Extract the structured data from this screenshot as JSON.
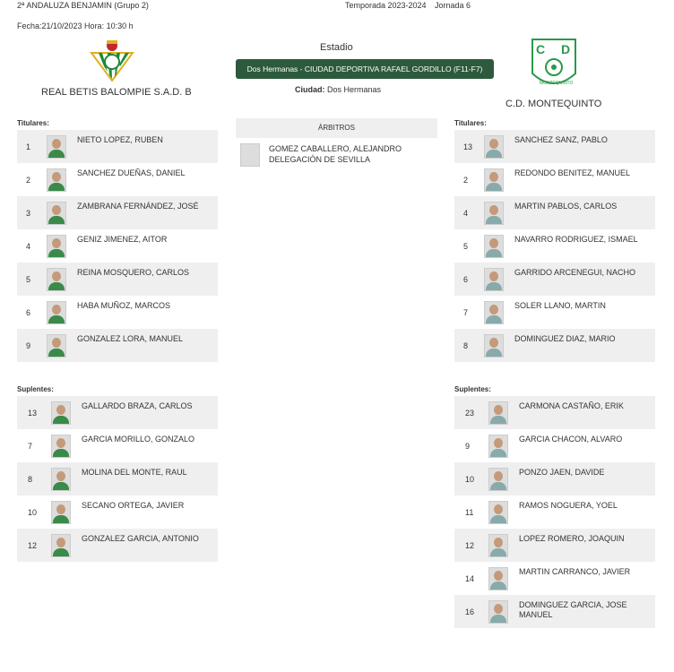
{
  "header": {
    "competition": "2ª ANDALUZA BENJAMIN (Grupo 2)",
    "season": "Temporada 2023-2024",
    "round": "Jornada 6",
    "date": "Fecha:21/10/2023 Hora: 10:30 h"
  },
  "venue": {
    "label": "Estadio",
    "stadium": "Dos Hermanas - CIUDAD DEPORTIVA RAFAEL GORDILLO (F11-F7)",
    "city_label": "Ciudad:",
    "city": "Dos Hermanas",
    "accent": "#2d5a3d"
  },
  "home": {
    "name": "REAL BETIS BALOMPIE S.A.D. B",
    "starters_label": "Titulares:",
    "subs_label": "Suplentes:",
    "starters": [
      {
        "n": "1",
        "name": "NIETO LOPEZ, RUBEN"
      },
      {
        "n": "2",
        "name": "SANCHEZ DUEÑAS, DANIEL"
      },
      {
        "n": "3",
        "name": "ZAMBRANA FERNÁNDEZ, JOSÉ"
      },
      {
        "n": "4",
        "name": "GENIZ JIMENEZ, AITOR"
      },
      {
        "n": "5",
        "name": "REINA MOSQUERO, CARLOS"
      },
      {
        "n": "6",
        "name": "HABA MUÑOZ, MARCOS"
      },
      {
        "n": "9",
        "name": "GONZALEZ LORA, MANUEL"
      }
    ],
    "subs": [
      {
        "n": "13",
        "name": "GALLARDO BRAZA, CARLOS"
      },
      {
        "n": "7",
        "name": "GARCIA MORILLO, GONZALO"
      },
      {
        "n": "8",
        "name": "MOLINA DEL MONTE, RAUL"
      },
      {
        "n": "10",
        "name": "SECANO ORTEGA, JAVIER"
      },
      {
        "n": "12",
        "name": "GONZALEZ GARCIA, ANTONIO"
      }
    ]
  },
  "away": {
    "name": "C.D. MONTEQUINTO",
    "logo_text": "C D MONTEQUINTO",
    "starters_label": "Titulares:",
    "subs_label": "Suplentes:",
    "starters": [
      {
        "n": "13",
        "name": "SANCHEZ SANZ, PABLO"
      },
      {
        "n": "2",
        "name": "REDONDO BENITEZ, MANUEL"
      },
      {
        "n": "4",
        "name": "MARTIN PABLOS, CARLOS"
      },
      {
        "n": "5",
        "name": "NAVARRO RODRIGUEZ, ISMAEL"
      },
      {
        "n": "6",
        "name": "GARRIDO ARCENEGUI, NACHO"
      },
      {
        "n": "7",
        "name": "SOLER LLANO, MARTIN"
      },
      {
        "n": "8",
        "name": "DOMINGUEZ DIAZ, MARIO"
      }
    ],
    "subs": [
      {
        "n": "23",
        "name": "CARMONA CASTAÑO, ERIK"
      },
      {
        "n": "9",
        "name": "GARCIA CHACON, ALVARO"
      },
      {
        "n": "10",
        "name": "PONZO JAEN, DAVIDE"
      },
      {
        "n": "11",
        "name": "RAMOS NOGUERA, YOEL"
      },
      {
        "n": "12",
        "name": "LOPEZ ROMERO, JOAQUIN"
      },
      {
        "n": "14",
        "name": "MARTIN CARRANCO, JAVIER"
      },
      {
        "n": "16",
        "name": "DOMINGUEZ GARCIA, JOSE MANUEL"
      }
    ]
  },
  "referees": {
    "header": "ÁRBITROS",
    "list": [
      {
        "name": "GOMEZ CABALLERO, ALEJANDRO",
        "delegation": "DELEGACIÓN DE SEVILLA"
      }
    ]
  }
}
